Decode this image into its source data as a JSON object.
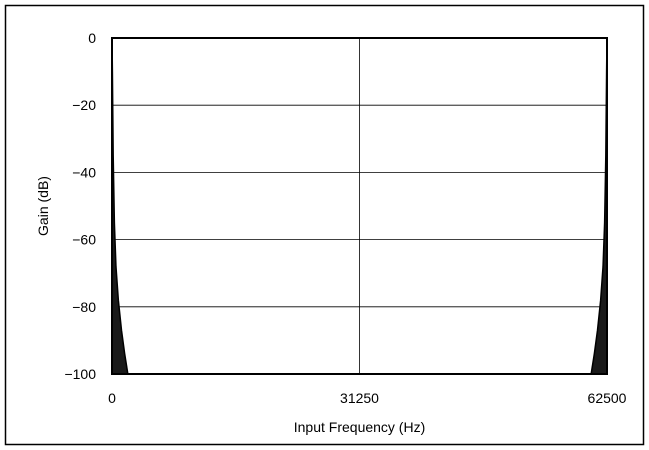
{
  "chart_data": {
    "type": "line",
    "title": "",
    "xlabel": "Input Frequency (Hz)",
    "ylabel": "Gain (dB)",
    "xlim": [
      0,
      62500
    ],
    "ylim": [
      -100,
      0
    ],
    "x_ticks": [
      0,
      31250,
      62500
    ],
    "x_tick_labels": [
      "0",
      "31250",
      "62500"
    ],
    "y_ticks": [
      0,
      -20,
      -40,
      -60,
      -80,
      -100
    ],
    "y_tick_labels": [
      "0",
      "−20",
      "−40",
      "−60",
      "−80",
      "−100"
    ],
    "grid": true,
    "legend": "none",
    "series": [
      {
        "x": [
          0,
          50,
          150,
          300,
          500,
          800,
          1200,
          1600,
          2000
        ],
        "y": [
          0,
          -10,
          -35,
          -55,
          -68,
          -78,
          -87,
          -94,
          -100
        ]
      },
      {
        "x": [
          60500,
          60900,
          61300,
          61700,
          62000,
          62200,
          62350,
          62450,
          62500
        ],
        "y": [
          -100,
          -94,
          -87,
          -78,
          -68,
          -55,
          -35,
          -10,
          0
        ]
      }
    ],
    "colors": {
      "line": "#000000",
      "fill": "#1a1a1a",
      "grid": "#000000"
    }
  }
}
